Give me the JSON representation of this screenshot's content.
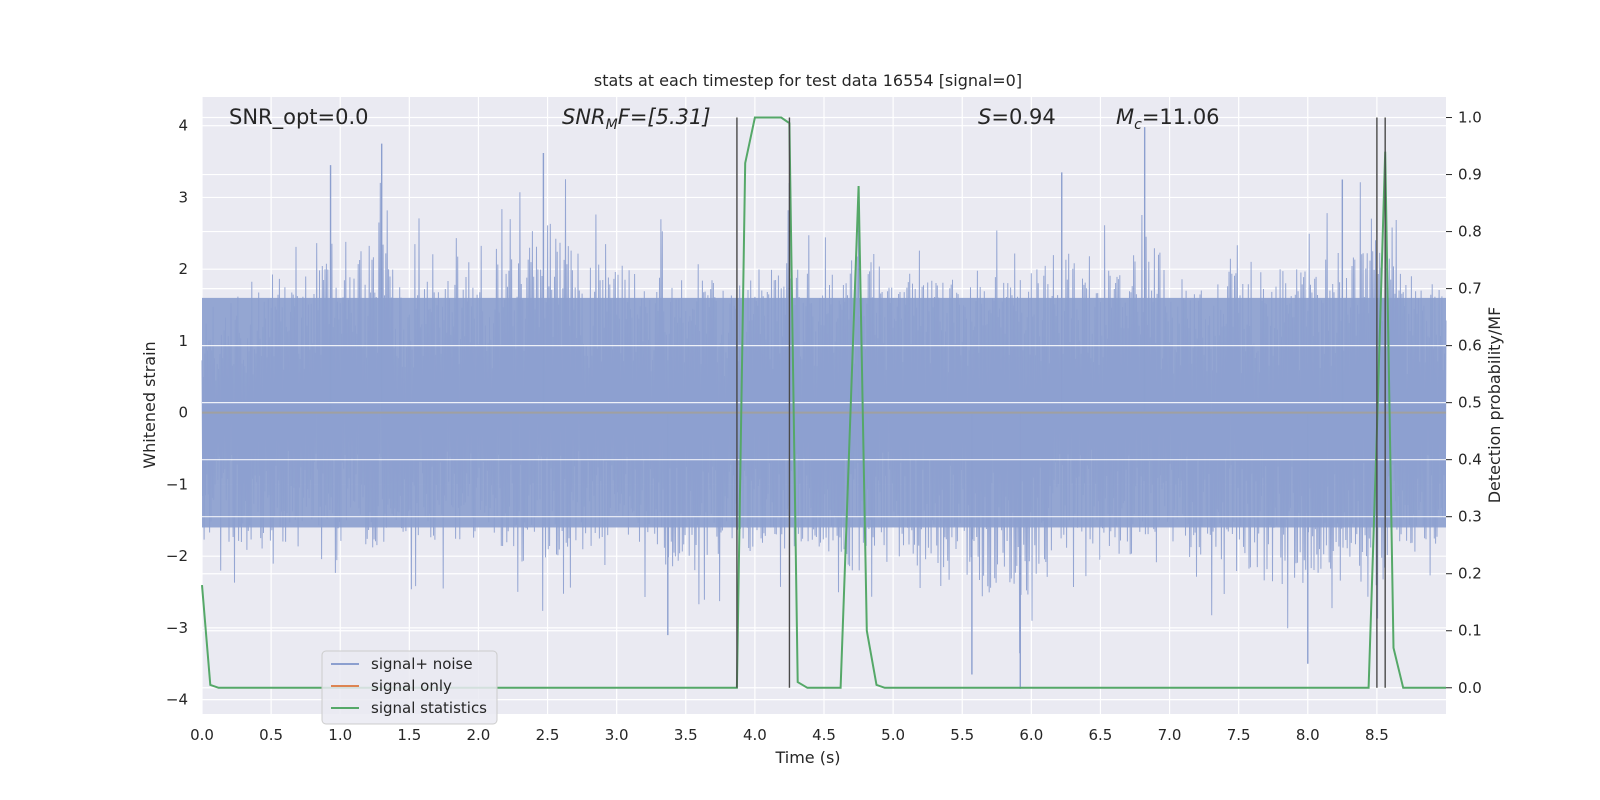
{
  "chart_data": {
    "type": "line",
    "title": "stats at each timestep for test data 16554 [signal=0]",
    "xlabel": "Time (s)",
    "ylabel": "Whitened strain",
    "y2label": "Detection probability/MF",
    "xlim": [
      0,
      9.0
    ],
    "ylim": [
      -4.2,
      4.4
    ],
    "y2lim": [
      -0.046,
      1.036
    ],
    "x_ticks": [
      0.0,
      0.5,
      1.0,
      1.5,
      2.0,
      2.5,
      3.0,
      3.5,
      4.0,
      4.5,
      5.0,
      5.5,
      6.0,
      6.5,
      7.0,
      7.5,
      8.0,
      8.5
    ],
    "x_tick_labels": [
      "0.0",
      "0.5",
      "1.0",
      "1.5",
      "2.0",
      "2.5",
      "3.0",
      "3.5",
      "4.0",
      "4.5",
      "5.0",
      "5.5",
      "6.0",
      "6.5",
      "7.0",
      "7.5",
      "8.0",
      "8.5"
    ],
    "y_ticks": [
      4,
      3,
      2,
      1,
      0,
      -1,
      -2,
      -3,
      -4
    ],
    "y_tick_labels": [
      "4",
      "3",
      "2",
      "1",
      "0",
      "−1",
      "−2",
      "−3",
      "−4"
    ],
    "y2_ticks": [
      1.0,
      0.9,
      0.8,
      0.7,
      0.6,
      0.5,
      0.4,
      0.3,
      0.2,
      0.1,
      0.0
    ],
    "y2_tick_labels": [
      "1.0",
      "0.9",
      "0.8",
      "0.7",
      "0.6",
      "0.5",
      "0.4",
      "0.3",
      "0.2",
      "0.1",
      "0.0"
    ],
    "grid": true,
    "legend_position": "lower-left",
    "colors": {
      "noise": "#8c9fcf",
      "signal": "#dd8452",
      "stats": "#55a868",
      "markers": "#4a4a4a",
      "background": "#eaeaf2"
    },
    "annotations": {
      "snr_opt": "SNR_opt=0.0",
      "snr_mf_main": "SNR",
      "snr_mf_sub": "M",
      "snr_mf_tail": "F=[5.31]",
      "s_main": "S",
      "s_tail": "=0.94",
      "mc_main": "M",
      "mc_sub": "c",
      "mc_tail": "=11.06"
    },
    "series": [
      {
        "name": "signal+ noise",
        "description_type": "noise",
        "envelope": {
          "x": [
            0.0,
            0.25,
            0.5,
            0.8,
            0.93,
            1.0,
            1.3,
            1.6,
            2.0,
            2.5,
            3.0,
            3.5,
            3.87,
            4.0,
            4.25,
            4.5,
            4.75,
            5.0,
            5.5,
            5.9,
            6.2,
            6.5,
            6.8,
            7.0,
            7.5,
            8.0,
            8.4,
            8.55,
            8.7,
            9.0
          ],
          "upper": [
            1.7,
            2.3,
            2.6,
            2.3,
            3.45,
            2.4,
            3.75,
            2.6,
            2.5,
            3.6,
            2.8,
            2.7,
            2.4,
            2.6,
            3.2,
            2.5,
            3.0,
            2.6,
            2.7,
            2.5,
            3.4,
            2.5,
            4.0,
            2.5,
            2.6,
            2.9,
            3.25,
            3.55,
            2.6,
            2.3
          ],
          "lower": [
            -2.3,
            -2.7,
            -2.5,
            -2.3,
            -2.4,
            -2.5,
            -2.6,
            -2.5,
            -2.6,
            -2.9,
            -2.4,
            -3.1,
            -2.9,
            -2.8,
            -2.6,
            -2.8,
            -3.0,
            -2.6,
            -3.3,
            -3.9,
            -2.7,
            -2.5,
            -2.8,
            -2.6,
            -3.0,
            -3.4,
            -3.0,
            -3.1,
            -2.7,
            -2.4
          ],
          "core_amplitude": 1.6,
          "notable_spikes": [
            {
              "x": 0.93,
              "y": 3.45
            },
            {
              "x": 1.3,
              "y": 3.75
            },
            {
              "x": 2.47,
              "y": 3.62
            },
            {
              "x": 3.37,
              "y": -3.1
            },
            {
              "x": 4.25,
              "y": 3.2
            },
            {
              "x": 4.75,
              "y": 3.05
            },
            {
              "x": 5.57,
              "y": -3.65
            },
            {
              "x": 5.92,
              "y": -3.85
            },
            {
              "x": 6.22,
              "y": 3.35
            },
            {
              "x": 6.82,
              "y": 3.98
            },
            {
              "x": 8.0,
              "y": -3.5
            },
            {
              "x": 8.25,
              "y": 3.25
            },
            {
              "x": 8.56,
              "y": 3.55
            }
          ]
        }
      },
      {
        "name": "signal only",
        "description_type": "signal",
        "x": [
          0.0,
          9.0
        ],
        "y": [
          0.0,
          0.0
        ]
      },
      {
        "name": "signal statistics",
        "description_type": "stats",
        "axis": "right",
        "x": [
          0.0,
          0.06,
          0.12,
          3.87,
          3.93,
          4.0,
          4.06,
          4.12,
          4.19,
          4.25,
          4.31,
          4.38,
          4.62,
          4.75,
          4.81,
          4.88,
          4.94,
          8.44,
          8.5,
          8.56,
          8.62,
          8.69,
          9.0
        ],
        "y": [
          0.18,
          0.005,
          0.0,
          0.0,
          0.92,
          1.0,
          1.0,
          1.0,
          1.0,
          0.99,
          0.01,
          0.0,
          0.0,
          0.88,
          0.1,
          0.005,
          0.0,
          0.0,
          0.45,
          0.94,
          0.07,
          0.0,
          0.0
        ]
      }
    ],
    "detection_markers": [
      {
        "x": 3.87,
        "y_from": 0.0,
        "y_to": 1.0
      },
      {
        "x": 4.25,
        "y_from": 0.0,
        "y_to": 1.0
      },
      {
        "x": 8.5,
        "y_from": 0.0,
        "y_to": 1.0
      },
      {
        "x": 8.56,
        "y_from": 0.0,
        "y_to": 1.0
      }
    ]
  }
}
